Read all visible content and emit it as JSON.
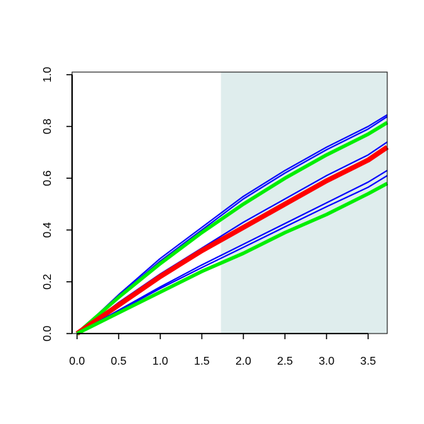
{
  "chart_data": {
    "type": "line",
    "x": [
      0,
      0.5,
      1,
      1.5,
      2,
      2.5,
      3,
      3.5,
      3.73
    ],
    "series": [
      {
        "color": "#0000ff",
        "values": [
          0,
          0.15,
          0.29,
          0.41,
          0.53,
          0.63,
          0.72,
          0.8,
          0.845
        ]
      },
      {
        "color": "#0000ff",
        "values": [
          0,
          0.145,
          0.28,
          0.4,
          0.52,
          0.62,
          0.71,
          0.79,
          0.838
        ]
      },
      {
        "color": "#00ee00",
        "values": [
          0,
          0.14,
          0.27,
          0.39,
          0.5,
          0.6,
          0.69,
          0.77,
          0.815
        ]
      },
      {
        "color": "#0000ff",
        "values": [
          0,
          0.12,
          0.23,
          0.33,
          0.43,
          0.52,
          0.61,
          0.69,
          0.74
        ]
      },
      {
        "color": "#ff0000",
        "values": [
          0,
          0.11,
          0.22,
          0.32,
          0.41,
          0.5,
          0.59,
          0.67,
          0.72
        ]
      },
      {
        "color": "#0000ff",
        "values": [
          0,
          0.09,
          0.18,
          0.265,
          0.345,
          0.425,
          0.505,
          0.585,
          0.63
        ]
      },
      {
        "color": "#0000ff",
        "values": [
          0,
          0.087,
          0.174,
          0.255,
          0.333,
          0.412,
          0.49,
          0.565,
          0.61
        ]
      },
      {
        "color": "#00ee00",
        "values": [
          0,
          0.08,
          0.16,
          0.24,
          0.31,
          0.39,
          0.46,
          0.54,
          0.58
        ]
      }
    ],
    "shaded_xrange": [
      1.73,
      3.73
    ],
    "shade_color": "#dfeded",
    "xlim": [
      -0.06,
      3.73
    ],
    "ylim": [
      0,
      1.01
    ],
    "xticks": [
      {
        "value": 0,
        "label": "0.0"
      },
      {
        "value": 0.5,
        "label": "0.5"
      },
      {
        "value": 1,
        "label": "1.0"
      },
      {
        "value": 1.5,
        "label": "1.5"
      },
      {
        "value": 2,
        "label": "2.0"
      },
      {
        "value": 2.5,
        "label": "2.5"
      },
      {
        "value": 3,
        "label": "3.0"
      },
      {
        "value": 3.5,
        "label": "3.5"
      }
    ],
    "yticks": [
      {
        "value": 0,
        "label": "0.0"
      },
      {
        "value": 0.2,
        "label": "0.2"
      },
      {
        "value": 0.4,
        "label": "0.4"
      },
      {
        "value": 0.6,
        "label": "0.6"
      },
      {
        "value": 0.8,
        "label": "0.8"
      },
      {
        "value": 1,
        "label": "1.0"
      }
    ]
  }
}
